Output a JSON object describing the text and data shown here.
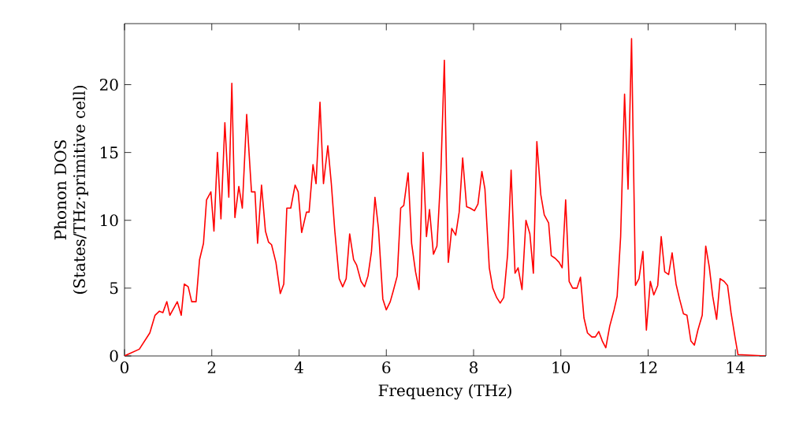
{
  "chart_data": {
    "type": "line",
    "xlabel": "Frequency (THz)",
    "ylabel": "Phonon DOS (States/THz·primitive cell)",
    "xlim": [
      0,
      14.7
    ],
    "ylim": [
      0,
      24.5
    ],
    "xticks": [
      0,
      2,
      4,
      6,
      8,
      10,
      12,
      14
    ],
    "yticks": [
      0,
      5,
      10,
      15,
      20
    ],
    "grid": false,
    "marker": "none",
    "line_style": "solid",
    "series": [
      {
        "color": "#ff0000",
        "x": [
          0,
          0.34,
          0.58,
          0.7,
          0.8,
          0.88,
          0.97,
          1.04,
          1.21,
          1.3,
          1.37,
          1.46,
          1.54,
          1.64,
          1.72,
          1.81,
          1.88,
          1.98,
          2.05,
          2.13,
          2.21,
          2.3,
          2.39,
          2.46,
          2.53,
          2.62,
          2.7,
          2.8,
          2.91,
          2.99,
          3.05,
          3.14,
          3.23,
          3.3,
          3.37,
          3.47,
          3.57,
          3.65,
          3.72,
          3.81,
          3.91,
          3.98,
          4.06,
          4.17,
          4.23,
          4.32,
          4.39,
          4.48,
          4.56,
          4.66,
          4.74,
          4.82,
          4.92,
          5.0,
          5.08,
          5.16,
          5.25,
          5.32,
          5.42,
          5.5,
          5.58,
          5.66,
          5.74,
          5.82,
          5.92,
          6.0,
          6.09,
          6.16,
          6.25,
          6.33,
          6.4,
          6.5,
          6.58,
          6.67,
          6.75,
          6.84,
          6.92,
          6.99,
          7.08,
          7.16,
          7.25,
          7.33,
          7.42,
          7.5,
          7.59,
          7.67,
          7.75,
          7.84,
          7.92,
          8.02,
          8.1,
          8.19,
          8.26,
          8.36,
          8.44,
          8.53,
          8.61,
          8.69,
          8.78,
          8.86,
          8.95,
          9.02,
          9.11,
          9.2,
          9.29,
          9.37,
          9.45,
          9.54,
          9.62,
          9.72,
          9.78,
          9.87,
          9.96,
          10.03,
          10.11,
          10.19,
          10.27,
          10.37,
          10.45,
          10.53,
          10.61,
          10.71,
          10.79,
          10.87,
          10.95,
          11.03,
          11.12,
          11.22,
          11.29,
          11.37,
          11.46,
          11.54,
          11.62,
          11.71,
          11.79,
          11.88,
          11.96,
          12.05,
          12.13,
          12.22,
          12.3,
          12.38,
          12.47,
          12.55,
          12.64,
          12.72,
          12.81,
          12.89,
          12.98,
          13.06,
          13.14,
          13.24,
          13.32,
          13.4,
          13.48,
          13.57,
          13.65,
          13.74,
          13.82,
          13.9,
          13.99,
          14.06,
          14.69
        ],
        "values": [
          0,
          0.5,
          1.7,
          3.0,
          3.3,
          3.2,
          4.0,
          3.0,
          4.0,
          3.0,
          5.3,
          5.1,
          4.0,
          4.0,
          7.1,
          8.3,
          11.5,
          12.1,
          9.2,
          15.0,
          10.1,
          17.2,
          11.7,
          20.1,
          10.2,
          12.5,
          10.9,
          17.8,
          12.1,
          12.1,
          8.3,
          12.6,
          9.2,
          8.4,
          8.2,
          6.9,
          4.6,
          5.3,
          10.9,
          10.9,
          12.6,
          12.1,
          9.1,
          10.6,
          10.6,
          14.1,
          12.7,
          18.7,
          12.7,
          15.5,
          12.7,
          9.2,
          5.7,
          5.1,
          5.7,
          9.0,
          7.1,
          6.7,
          5.5,
          5.1,
          5.9,
          7.7,
          11.7,
          9.4,
          4.2,
          3.4,
          4.0,
          4.8,
          5.9,
          10.9,
          11.1,
          13.5,
          8.3,
          6.2,
          4.9,
          15.0,
          8.8,
          10.8,
          7.5,
          8.1,
          13.5,
          21.8,
          6.9,
          9.4,
          8.9,
          10.6,
          14.6,
          11.0,
          10.9,
          10.7,
          11.2,
          13.6,
          12.3,
          6.5,
          5.0,
          4.3,
          3.9,
          4.3,
          7.5,
          13.7,
          6.1,
          6.5,
          4.9,
          10.0,
          9.0,
          6.1,
          15.8,
          11.9,
          10.4,
          9.8,
          7.4,
          7.2,
          6.9,
          6.5,
          11.5,
          5.5,
          5.0,
          5.0,
          5.8,
          2.8,
          1.7,
          1.4,
          1.4,
          1.8,
          1.1,
          0.6,
          2.2,
          3.4,
          4.4,
          8.8,
          19.3,
          12.3,
          23.4,
          5.2,
          5.7,
          7.7,
          1.9,
          5.5,
          4.5,
          5.2,
          8.8,
          6.2,
          6.0,
          7.6,
          5.3,
          4.2,
          3.1,
          3.0,
          1.1,
          0.8,
          1.9,
          3.0,
          8.1,
          6.6,
          4.4,
          2.7,
          5.7,
          5.5,
          5.2,
          3.2,
          1.4,
          0.1,
          0
        ]
      }
    ]
  }
}
